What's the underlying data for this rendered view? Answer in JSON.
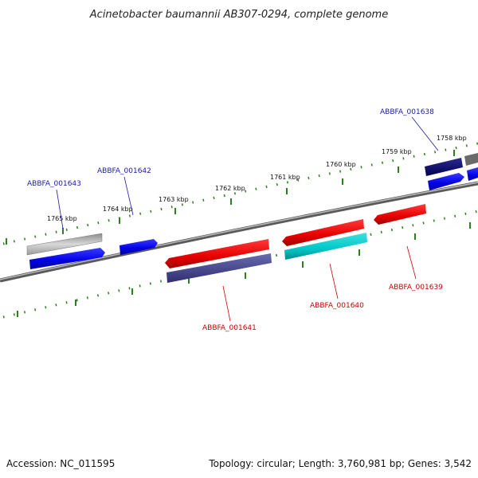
{
  "title": "Acinetobacter baumannii AB307-0294, complete genome",
  "footer": {
    "accession": "Accession: NC_011595",
    "summary": "Topology: circular; Length: 3,760,981 bp; Genes: 3,542"
  },
  "colors": {
    "backbone": "#808080",
    "tick": "#2e7d1f",
    "forward_label": "#1a1aa8",
    "reverse_label": "#cc0000"
  },
  "ticks": [
    {
      "label": "1765 kbp"
    },
    {
      "label": "1764 kbp"
    },
    {
      "label": "1763 kbp"
    },
    {
      "label": "1762 kbp"
    },
    {
      "label": "1761 kbp"
    },
    {
      "label": "1760 kbp"
    },
    {
      "label": "1759 kbp"
    },
    {
      "label": "1758 kbp"
    }
  ],
  "genes": {
    "forward": [
      {
        "id": "ABBFA_001643"
      },
      {
        "id": "ABBFA_001642"
      },
      {
        "id": "ABBFA_001638"
      }
    ],
    "reverse": [
      {
        "id": "ABBFA_001641"
      },
      {
        "id": "ABBFA_001640"
      },
      {
        "id": "ABBFA_001639"
      }
    ]
  }
}
